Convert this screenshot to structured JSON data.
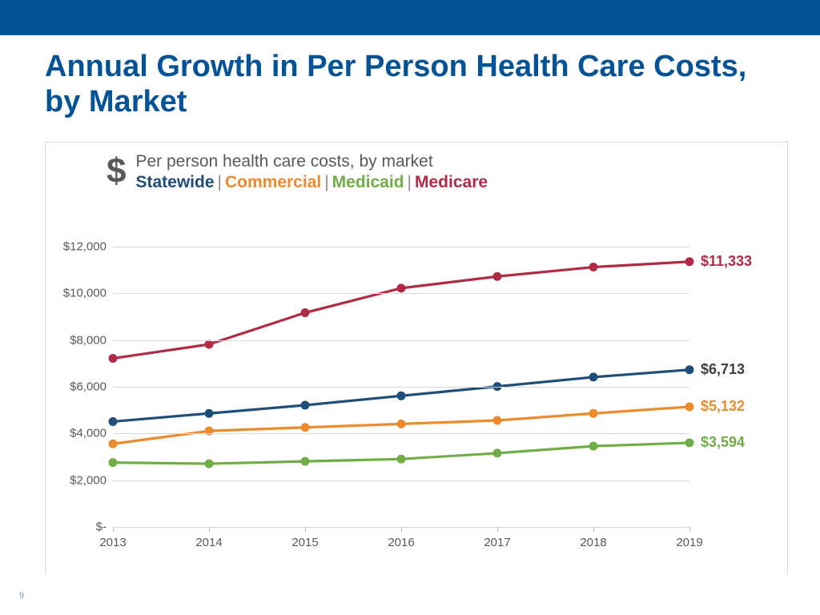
{
  "header": {
    "bar_color": "#035396",
    "title": "Annual Growth in Per Person Health Care Costs, by Market",
    "title_color": "#035396",
    "title_fontsize": 38
  },
  "chart": {
    "type": "line",
    "icon": "$",
    "subtitle": "Per person health care costs, by market",
    "subtitle_color": "#595959",
    "legend": [
      {
        "label": "Statewide",
        "color": "#1f4e79"
      },
      {
        "label": "Commercial",
        "color": "#ed8b2c"
      },
      {
        "label": "Medicaid",
        "color": "#70ad47"
      },
      {
        "label": "Medicare",
        "color": "#b12a46"
      }
    ],
    "x": {
      "categories": [
        "2013",
        "2014",
        "2015",
        "2016",
        "2017",
        "2018",
        "2019"
      ],
      "label_fontsize": 15
    },
    "y": {
      "min": 0,
      "max": 13000,
      "ticks": [
        0,
        2000,
        4000,
        6000,
        8000,
        10000,
        12000
      ],
      "tick_labels": [
        "$-",
        "$2,000",
        "$4,000",
        "$6,000",
        "$8,000",
        "$10,000",
        "$12,000"
      ],
      "label_fontsize": 15
    },
    "grid_color": "#d9d9d9",
    "line_width": 3.2,
    "marker_radius": 5.5,
    "series": {
      "statewide": {
        "color": "#1f4e79",
        "values": [
          4500,
          4850,
          5200,
          5600,
          6000,
          6400,
          6713
        ],
        "end_label": "$6,713",
        "end_label_color": "#404040"
      },
      "commercial": {
        "color": "#ed8b2c",
        "values": [
          3550,
          4100,
          4250,
          4400,
          4550,
          4850,
          5132
        ],
        "end_label": "$5,132",
        "end_label_color": "#ed8b2c"
      },
      "medicaid": {
        "color": "#70ad47",
        "values": [
          2750,
          2700,
          2800,
          2900,
          3150,
          3450,
          3594
        ],
        "end_label": "$3,594",
        "end_label_color": "#70ad47"
      },
      "medicare": {
        "color": "#b12a46",
        "values": [
          7200,
          7800,
          9150,
          10200,
          10700,
          11100,
          11333
        ],
        "end_label": "$11,333",
        "end_label_color": "#b12a46"
      }
    },
    "background_color": "#ffffff"
  },
  "page_number": "9"
}
